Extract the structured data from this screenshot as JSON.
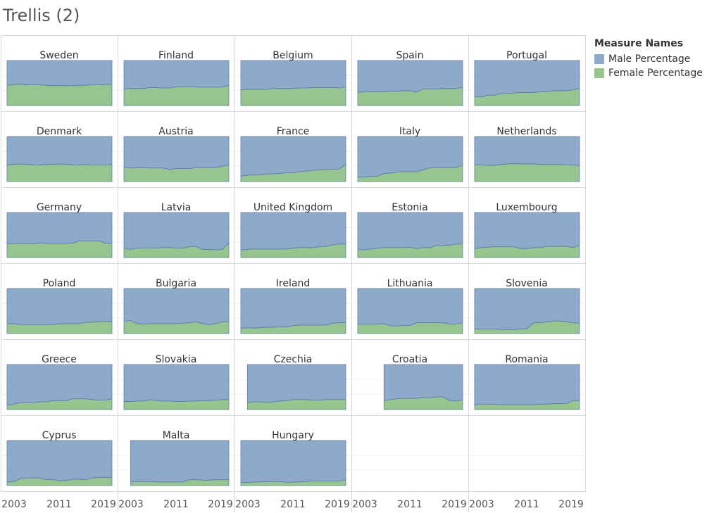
{
  "page": {
    "title": "Trellis (2)"
  },
  "colors": {
    "male": "#8EA9CA",
    "female": "#96C68D",
    "male_line": "#5F7FA8",
    "grid": "#d9d9d9"
  },
  "legend": {
    "title": "Measure Names",
    "items": [
      {
        "label": "Male Percentage",
        "color": "#8EA9CA"
      },
      {
        "label": "Female Percentage",
        "color": "#96C68D"
      }
    ]
  },
  "chart_data": {
    "type": "area",
    "subtype": "stacked-100-trellis",
    "x_ticks": [
      "2003",
      "2011",
      "2019"
    ],
    "ylim": [
      0,
      100
    ],
    "series_names": [
      "Male Percentage",
      "Female Percentage"
    ],
    "panels": [
      {
        "country": "Sweden",
        "start_year": 2003,
        "end_year": 2019,
        "female": [
          45,
          47,
          47,
          46,
          46,
          46,
          45,
          44,
          45,
          44,
          44,
          45,
          45,
          46,
          46,
          47,
          47
        ]
      },
      {
        "country": "Finland",
        "start_year": 2003,
        "end_year": 2019,
        "female": [
          37,
          38,
          38,
          38,
          40,
          40,
          39,
          39,
          42,
          42,
          42,
          41,
          41,
          41,
          41,
          41,
          45
        ]
      },
      {
        "country": "Belgium",
        "start_year": 2003,
        "end_year": 2019,
        "female": [
          35,
          36,
          36,
          36,
          36,
          38,
          38,
          38,
          38,
          39,
          39,
          40,
          40,
          40,
          40,
          39,
          42
        ]
      },
      {
        "country": "Spain",
        "start_year": 2003,
        "end_year": 2019,
        "female": [
          29,
          31,
          31,
          31,
          31,
          32,
          32,
          33,
          33,
          30,
          37,
          37,
          37,
          38,
          38,
          38,
          40
        ]
      },
      {
        "country": "Portugal",
        "start_year": 2003,
        "end_year": 2019,
        "female": [
          20,
          19,
          23,
          23,
          27,
          27,
          28,
          29,
          29,
          29,
          31,
          31,
          33,
          33,
          33,
          35,
          38
        ]
      },
      {
        "country": "Denmark",
        "start_year": 2003,
        "end_year": 2019,
        "female": [
          37,
          38,
          39,
          38,
          37,
          37,
          38,
          38,
          39,
          38,
          37,
          37,
          38,
          37,
          37,
          37,
          38
        ]
      },
      {
        "country": "Austria",
        "start_year": 2003,
        "end_year": 2019,
        "female": [
          31,
          30,
          31,
          31,
          30,
          30,
          30,
          27,
          29,
          29,
          29,
          31,
          31,
          31,
          31,
          34,
          37
        ]
      },
      {
        "country": "France",
        "start_year": 2003,
        "end_year": 2019,
        "female": [
          12,
          14,
          15,
          15,
          17,
          17,
          18,
          20,
          20,
          22,
          23,
          25,
          26,
          27,
          27,
          28,
          38
        ]
      },
      {
        "country": "Italy",
        "start_year": 2003,
        "end_year": 2019,
        "female": [
          10,
          10,
          12,
          12,
          18,
          19,
          21,
          22,
          22,
          22,
          26,
          31,
          31,
          31,
          31,
          31,
          37
        ]
      },
      {
        "country": "Netherlands",
        "start_year": 2003,
        "end_year": 2019,
        "female": [
          37,
          37,
          36,
          36,
          38,
          39,
          40,
          39,
          39,
          39,
          38,
          38,
          38,
          38,
          37,
          37,
          35
        ]
      },
      {
        "country": "Germany",
        "start_year": 2003,
        "end_year": 2019,
        "female": [
          31,
          31,
          32,
          31,
          31,
          32,
          32,
          32,
          32,
          32,
          32,
          37,
          37,
          37,
          37,
          32,
          32
        ]
      },
      {
        "country": "Latvia",
        "start_year": 2003,
        "end_year": 2019,
        "female": [
          21,
          18,
          21,
          21,
          21,
          21,
          22,
          22,
          21,
          21,
          24,
          25,
          18,
          18,
          17,
          18,
          32
        ]
      },
      {
        "country": "United Kingdom",
        "start_year": 2003,
        "end_year": 2019,
        "female": [
          17,
          18,
          19,
          19,
          19,
          19,
          19,
          19,
          21,
          22,
          22,
          22,
          24,
          25,
          28,
          30,
          30
        ]
      },
      {
        "country": "Estonia",
        "start_year": 2003,
        "end_year": 2019,
        "female": [
          18,
          17,
          19,
          21,
          22,
          22,
          22,
          22,
          23,
          20,
          22,
          22,
          27,
          27,
          28,
          30,
          30
        ]
      },
      {
        "country": "Luxembourg",
        "start_year": 2003,
        "end_year": 2019,
        "female": [
          20,
          22,
          23,
          24,
          24,
          24,
          24,
          20,
          20,
          22,
          22,
          25,
          25,
          25,
          25,
          22,
          27
        ]
      },
      {
        "country": "Poland",
        "start_year": 2003,
        "end_year": 2019,
        "female": [
          22,
          22,
          20,
          20,
          20,
          20,
          20,
          20,
          22,
          22,
          22,
          22,
          25,
          25,
          27,
          27,
          27
        ]
      },
      {
        "country": "Bulgaria",
        "start_year": 2003,
        "end_year": 2019,
        "female": [
          27,
          29,
          22,
          21,
          22,
          22,
          22,
          22,
          22,
          23,
          24,
          26,
          22,
          20,
          22,
          26,
          27
        ]
      },
      {
        "country": "Ireland",
        "start_year": 2003,
        "end_year": 2019,
        "female": [
          12,
          13,
          12,
          13,
          14,
          14,
          15,
          15,
          18,
          19,
          19,
          19,
          19,
          19,
          23,
          24,
          24
        ]
      },
      {
        "country": "Lithuania",
        "start_year": 2003,
        "end_year": 2019,
        "female": [
          21,
          21,
          21,
          21,
          22,
          17,
          17,
          18,
          18,
          24,
          24,
          24,
          24,
          24,
          21,
          21,
          24
        ]
      },
      {
        "country": "Slovenia",
        "start_year": 2003,
        "end_year": 2019,
        "female": [
          10,
          10,
          10,
          10,
          9,
          9,
          9,
          10,
          11,
          24,
          24,
          26,
          28,
          28,
          26,
          24,
          23
        ]
      },
      {
        "country": "Greece",
        "start_year": 2003,
        "end_year": 2019,
        "female": [
          10,
          12,
          15,
          15,
          15,
          17,
          17,
          20,
          20,
          20,
          24,
          24,
          24,
          22,
          21,
          21,
          24
        ]
      },
      {
        "country": "Slovakia",
        "start_year": 2003,
        "end_year": 2019,
        "female": [
          18,
          18,
          19,
          19,
          22,
          20,
          19,
          19,
          18,
          18,
          19,
          19,
          20,
          20,
          21,
          22,
          22
        ]
      },
      {
        "country": "Czechia",
        "start_year": 2004,
        "end_year": 2019,
        "female": [
          16,
          17,
          17,
          16,
          17,
          19,
          20,
          22,
          22,
          22,
          21,
          21,
          22,
          22,
          22,
          22
        ]
      },
      {
        "country": "Croatia",
        "start_year": 2007,
        "end_year": 2019,
        "female": [
          20,
          22,
          24,
          25,
          25,
          25,
          27,
          26,
          28,
          28,
          20,
          19,
          22
        ]
      },
      {
        "country": "Romania",
        "start_year": 2003,
        "end_year": 2019,
        "female": [
          10,
          12,
          12,
          12,
          11,
          11,
          11,
          11,
          11,
          11,
          12,
          12,
          13,
          13,
          13,
          20,
          20
        ]
      },
      {
        "country": "Cyprus",
        "start_year": 2003,
        "end_year": 2019,
        "female": [
          8,
          9,
          15,
          17,
          17,
          17,
          13,
          13,
          11,
          11,
          14,
          14,
          13,
          17,
          18,
          18,
          18
        ]
      },
      {
        "country": "Malta",
        "start_year": 2004,
        "end_year": 2019,
        "female": [
          9,
          9,
          9,
          9,
          8,
          8,
          8,
          8,
          8,
          13,
          13,
          12,
          12,
          13,
          13,
          13
        ]
      },
      {
        "country": "Hungary",
        "start_year": 2003,
        "end_year": 2019,
        "female": [
          7,
          7,
          8,
          8,
          9,
          9,
          9,
          7,
          8,
          8,
          9,
          10,
          10,
          10,
          10,
          10,
          13
        ]
      }
    ]
  }
}
